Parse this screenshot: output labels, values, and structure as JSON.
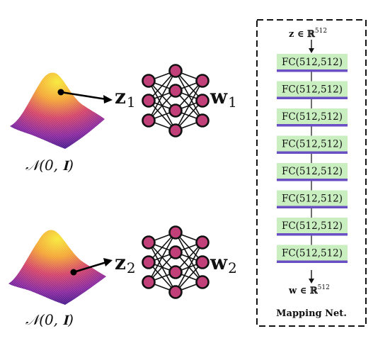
{
  "title": "",
  "distribution_label": "𝒩(0, 𝐈)",
  "latent_rows": [
    {
      "z_label": "z",
      "z_sub": "1",
      "w_label": "w",
      "w_sub": "1"
    },
    {
      "z_label": "z",
      "z_sub": "2",
      "w_label": "w",
      "w_sub": "2"
    }
  ],
  "mapping_net": {
    "input_label": "z ∈ ℝ",
    "input_power": "512",
    "layers": [
      "FC(512,512)",
      "FC(512,512)",
      "FC(512,512)",
      "FC(512,512)",
      "FC(512,512)",
      "FC(512,512)",
      "FC(512,512)",
      "FC(512,512)"
    ],
    "output_label": "w ∈ ℝ",
    "output_power": "512",
    "caption": "Mapping Net."
  },
  "colors": {
    "fc_fill": "#c9efc1",
    "fc_bar": "#6a4fc4",
    "node_fill": "#c2407a",
    "surface_peak": "#f3e43a",
    "surface_base": "#3c1a8a"
  }
}
